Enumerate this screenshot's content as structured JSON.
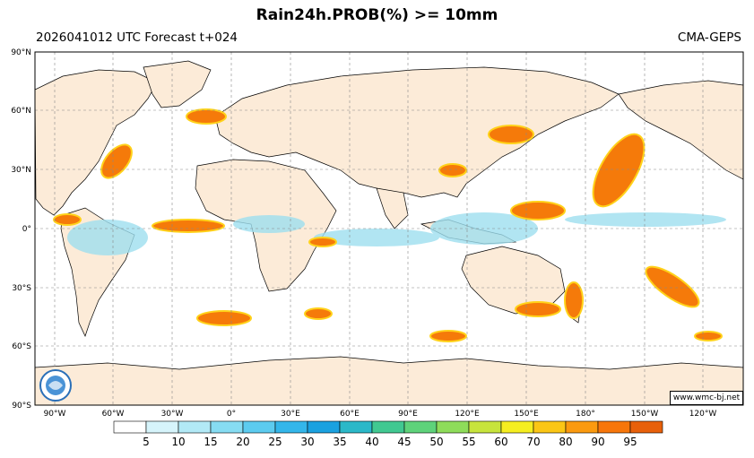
{
  "title": "Rain24h.PROB(%) >= 10mm",
  "subtitle_left": "2026041012 UTC Forecast t+024",
  "subtitle_right": "CMA-GEPS",
  "credit": "www.wmc-bj.net",
  "lat_labels": [
    "90°N",
    "60°N",
    "30°N",
    "0°",
    "30°S",
    "60°S",
    "90°S"
  ],
  "lon_labels": [
    "90°W",
    "60°W",
    "30°W",
    "0°",
    "30°E",
    "60°E",
    "90°E",
    "120°E",
    "150°E",
    "180°",
    "150°W",
    "120°W"
  ],
  "legend": {
    "levels": [
      "5",
      "10",
      "15",
      "20",
      "25",
      "30",
      "35",
      "40",
      "45",
      "50",
      "55",
      "60",
      "70",
      "80",
      "90",
      "95"
    ],
    "colors": [
      "#ffffff",
      "#d6f4fb",
      "#b2e9f6",
      "#86dcf2",
      "#5ccbef",
      "#33b6ea",
      "#1aa1e0",
      "#2bb8c8",
      "#41c891",
      "#5ed27a",
      "#8edc5a",
      "#c7e43c",
      "#f5ee20",
      "#fbc615",
      "#fb9a0f",
      "#f7760a",
      "#e8600a"
    ]
  },
  "colors": {
    "land": "#fcebd8",
    "ocean": "#ffffff",
    "rain_core": "#f57a0a",
    "rain_edge": "#ffd21a",
    "rain_light": "#9edfef"
  }
}
